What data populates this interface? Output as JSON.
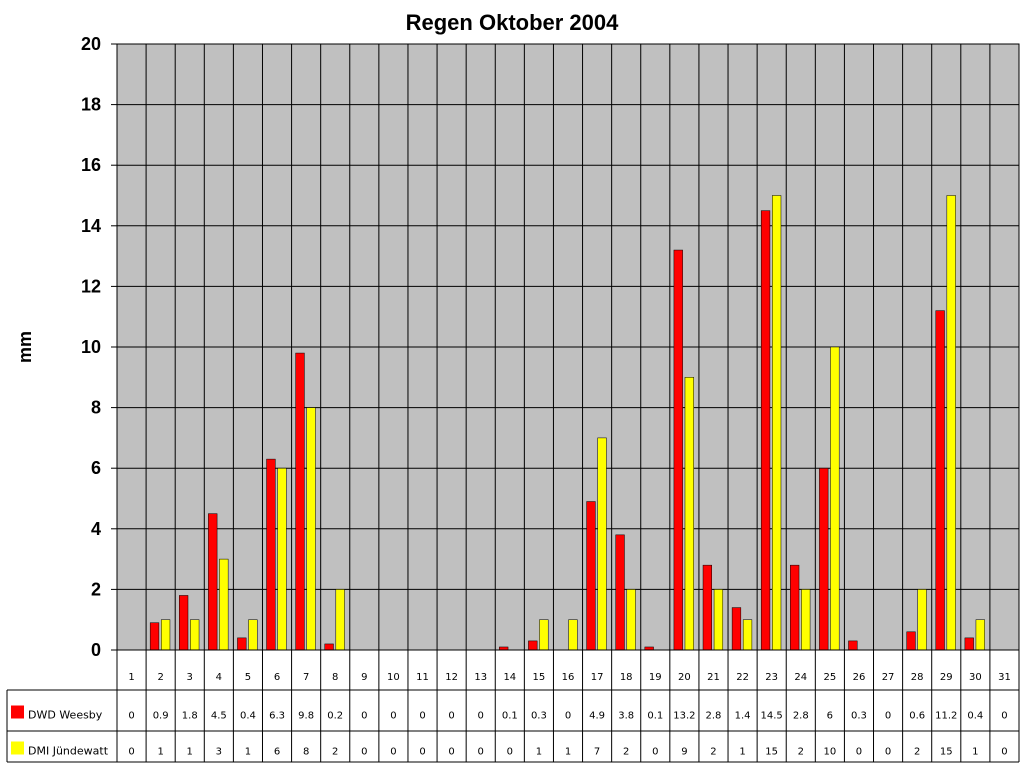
{
  "chart_data": {
    "type": "bar",
    "title": "Regen Oktober 2004",
    "ylabel": "mm",
    "xlabel": "",
    "ylim": [
      0,
      20
    ],
    "yticks": [
      0,
      2,
      4,
      6,
      8,
      10,
      12,
      14,
      16,
      18,
      20
    ],
    "grid": true,
    "categories": [
      "1",
      "2",
      "3",
      "4",
      "5",
      "6",
      "7",
      "8",
      "9",
      "10",
      "11",
      "12",
      "13",
      "14",
      "15",
      "16",
      "17",
      "18",
      "19",
      "20",
      "21",
      "22",
      "23",
      "24",
      "25",
      "26",
      "27",
      "28",
      "29",
      "30",
      "31"
    ],
    "data_table": true,
    "series": [
      {
        "name": "DWD Weesby",
        "color": "#ff0000",
        "values": [
          0,
          0.9,
          1.8,
          4.5,
          0.4,
          6.3,
          9.8,
          0.2,
          0,
          0,
          0,
          0,
          0,
          0.1,
          0.3,
          0,
          4.9,
          3.8,
          0.1,
          13.2,
          2.8,
          1.4,
          14.5,
          2.8,
          6,
          0.3,
          0,
          0.6,
          11.2,
          0.4,
          0
        ]
      },
      {
        "name": "DMI Jündewatt",
        "color": "#ffff00",
        "values": [
          0,
          1,
          1,
          3,
          1,
          6,
          8,
          2,
          0,
          0,
          0,
          0,
          0,
          0,
          1,
          1,
          7,
          2,
          0,
          9,
          2,
          1,
          15,
          2,
          10,
          0,
          0,
          2,
          15,
          1,
          0
        ]
      }
    ],
    "plot_background": "#c0c0c0",
    "gridline_color": "#000000"
  }
}
